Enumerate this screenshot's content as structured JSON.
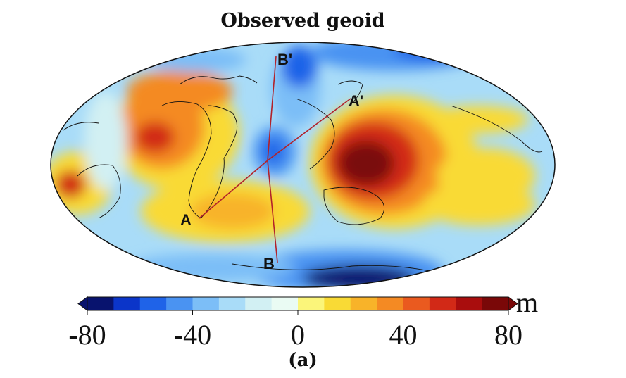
{
  "title": "Observed geoid",
  "projection": "Mollweide",
  "colorbar": {
    "unit": "m",
    "min": -80,
    "max": 80,
    "step": 10,
    "ticks": [
      "-80",
      "-40",
      "0",
      "40",
      "80"
    ],
    "colors": [
      "#08136e",
      "#0b35c9",
      "#1f63e8",
      "#4a93f2",
      "#7cbef7",
      "#a9dcf8",
      "#d2f0f3",
      "#eafbf3",
      "#fbf57a",
      "#f9da35",
      "#f8b329",
      "#f48a23",
      "#ea5a1f",
      "#d22917",
      "#a90d0d",
      "#7a0808"
    ]
  },
  "profiles": [
    {
      "start": "A",
      "end": "A'"
    },
    {
      "start": "B",
      "end": "B'"
    }
  ],
  "caption": "(a)"
}
